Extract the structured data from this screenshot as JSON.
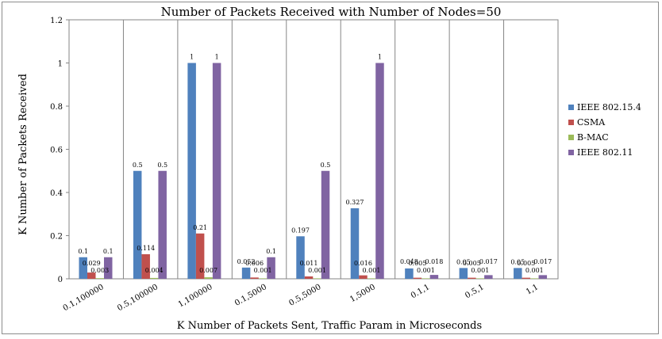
{
  "chart_data": {
    "type": "bar",
    "title": "Number of Packets Received with Number of Nodes=50",
    "xlabel": "K Number of Packets Sent, Traffic Param in Microseconds",
    "ylabel": "K Number of Packets Received",
    "ylim": [
      0,
      1.2
    ],
    "yticks": [
      "0",
      "0.2",
      "0.4",
      "0.6",
      "0.8",
      "1",
      "1.2"
    ],
    "grid": "vertical",
    "legend_position": "right",
    "categories": [
      "0.1,100000",
      "0.5,100000",
      "1,100000",
      "0.1,5000",
      "0.5,5000",
      "1,5000",
      "0.1,1",
      "0.5,1",
      "1,1"
    ],
    "series": [
      {
        "name": "IEEE 802.15.4",
        "color": "#4f81bd",
        "values": [
          0.1,
          0.5,
          1,
          0.052,
          0.197,
          0.327,
          0.048,
          0.05,
          0.05
        ],
        "labels": [
          "0.1",
          "0.5",
          "1",
          "0.052",
          "0.197",
          "0.327",
          "0.048",
          "0.05",
          "0.05"
        ]
      },
      {
        "name": "CSMA",
        "color": "#c0504d",
        "values": [
          0.029,
          0.114,
          0.21,
          0.006,
          0.011,
          0.016,
          0.005,
          0.005,
          0.005
        ],
        "labels": [
          "0.029",
          "0.114",
          "0.21",
          "0.006",
          "0.011",
          "0.016",
          "0.005",
          "0.005",
          "0.005"
        ]
      },
      {
        "name": "B-MAC",
        "color": "#9bbb59",
        "values": [
          0.003,
          0.004,
          0.007,
          0.001,
          0.001,
          0.001,
          0.001,
          0.001,
          0.001
        ],
        "labels": [
          "0.003",
          "0.004",
          "0.007",
          "0.001",
          "0.001",
          "0.001",
          "0.001",
          "0.001",
          "0.001"
        ]
      },
      {
        "name": "IEEE 802.11",
        "color": "#8064a2",
        "values": [
          0.1,
          0.5,
          1,
          0.1,
          0.5,
          1,
          0.018,
          0.017,
          0.017
        ],
        "labels": [
          "0.1",
          "0.5",
          "1",
          "0.1",
          "0.5",
          "1",
          "0.018",
          "0.017",
          "0.017"
        ]
      }
    ]
  }
}
